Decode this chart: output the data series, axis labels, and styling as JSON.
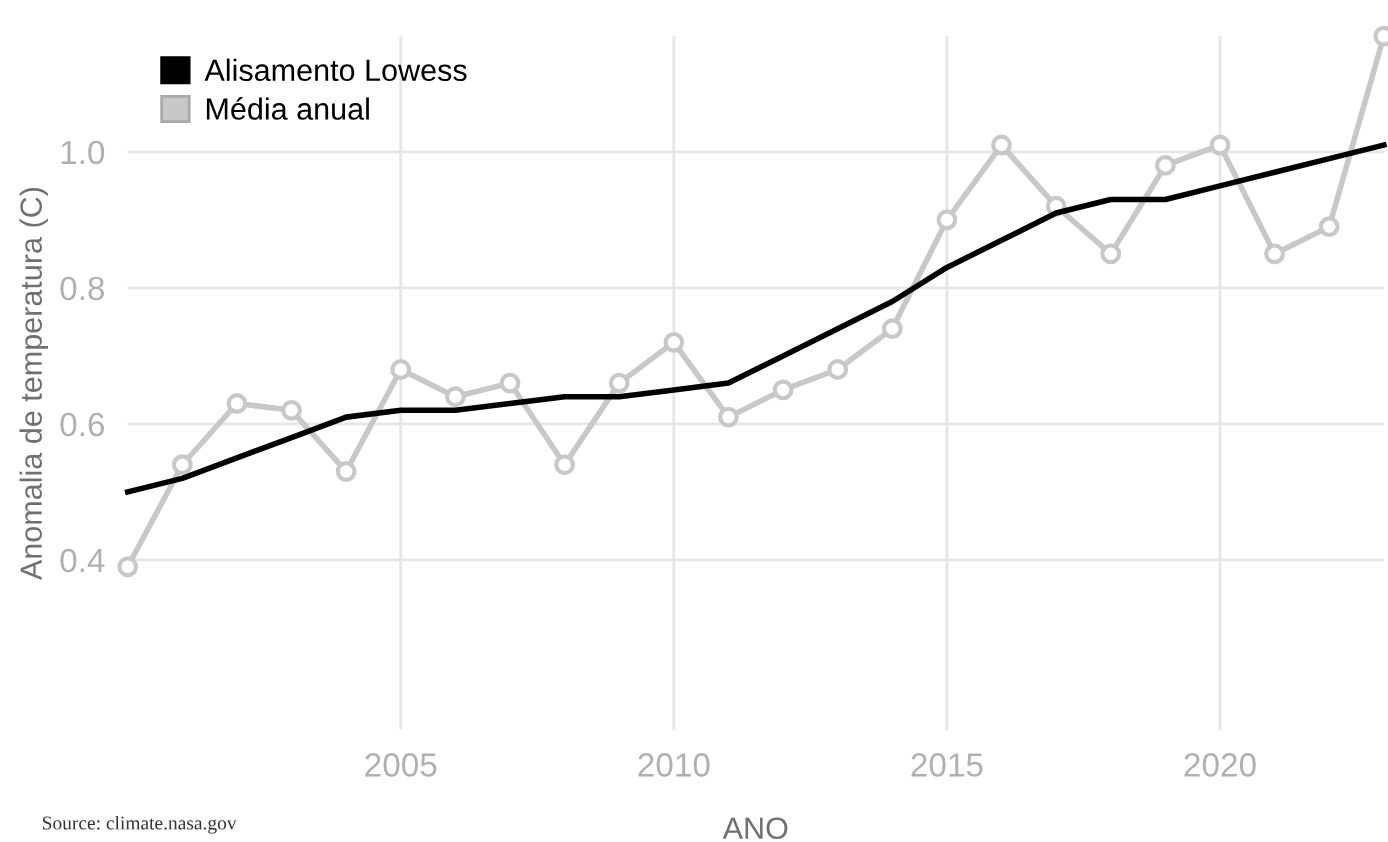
{
  "chart_data": {
    "type": "line",
    "xlabel": "ANO",
    "ylabel": "Anomalia de temperatura (C)",
    "annotations": [
      "Source: climate.nasa.gov"
    ],
    "x": [
      2000,
      2001,
      2002,
      2003,
      2004,
      2005,
      2006,
      2007,
      2008,
      2009,
      2010,
      2011,
      2012,
      2013,
      2014,
      2015,
      2016,
      2017,
      2018,
      2019,
      2020,
      2021,
      2022,
      2023
    ],
    "series": [
      {
        "name": "Alisamento Lowess",
        "color": "#000000",
        "marker": "none",
        "values": [
          0.5,
          0.52,
          0.55,
          0.58,
          0.61,
          0.62,
          0.62,
          0.63,
          0.64,
          0.64,
          0.65,
          0.66,
          0.7,
          0.74,
          0.78,
          0.83,
          0.87,
          0.91,
          0.93,
          0.93,
          0.95,
          0.97,
          0.99,
          1.01
        ]
      },
      {
        "name": "Média anual",
        "color": "#c8c8c8",
        "marker": "circle",
        "values": [
          0.39,
          0.54,
          0.63,
          0.62,
          0.53,
          0.68,
          0.64,
          0.66,
          0.54,
          0.66,
          0.72,
          0.61,
          0.65,
          0.68,
          0.74,
          0.9,
          1.01,
          0.92,
          0.85,
          0.98,
          1.01,
          0.85,
          0.89,
          1.17
        ]
      }
    ],
    "xlim": [
      2000,
      2023
    ],
    "ylim": [
      0.15,
      1.17
    ],
    "xticks": [
      2005,
      2010,
      2015,
      2020
    ],
    "yticks": [
      0.4,
      0.6,
      0.8,
      {
        "value": 1,
        "label": "1.0"
      }
    ],
    "grid": true,
    "legend": "top left",
    "line_style": "solid"
  }
}
